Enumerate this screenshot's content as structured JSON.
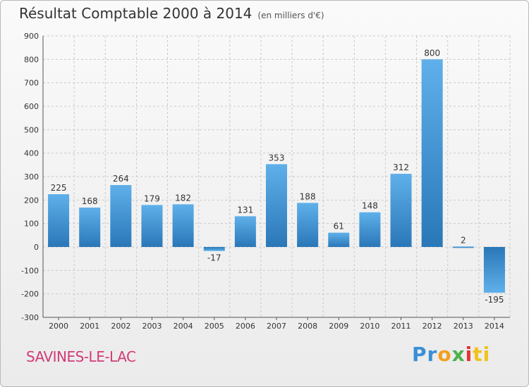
{
  "chart_data": {
    "type": "bar",
    "title": "Résultat Comptable 2000 à 2014",
    "subtitle": "(en milliers d'€)",
    "categories": [
      "2000",
      "2001",
      "2002",
      "2003",
      "2004",
      "2005",
      "2006",
      "2007",
      "2008",
      "2009",
      "2010",
      "2011",
      "2012",
      "2013",
      "2014"
    ],
    "values": [
      225,
      168,
      264,
      179,
      182,
      -17,
      131,
      353,
      188,
      61,
      148,
      312,
      800,
      2,
      -195
    ],
    "value_labels": [
      "225",
      "168",
      "264",
      "179",
      "182",
      "-17",
      "131",
      "353",
      "188",
      "61",
      "148",
      "312",
      "800",
      "2",
      "-195"
    ],
    "ylim": [
      -300,
      900
    ],
    "yticks": [
      -300,
      -200,
      -100,
      0,
      100,
      200,
      300,
      400,
      500,
      600,
      700,
      800,
      900
    ],
    "grid": true,
    "xlabel": "",
    "ylabel": "",
    "bar_color": "#3d92d6"
  },
  "footer": {
    "city": "SAVINES-LE-LAC",
    "brand_parts": [
      "Pr",
      "o",
      "x",
      "i",
      "ti"
    ]
  }
}
